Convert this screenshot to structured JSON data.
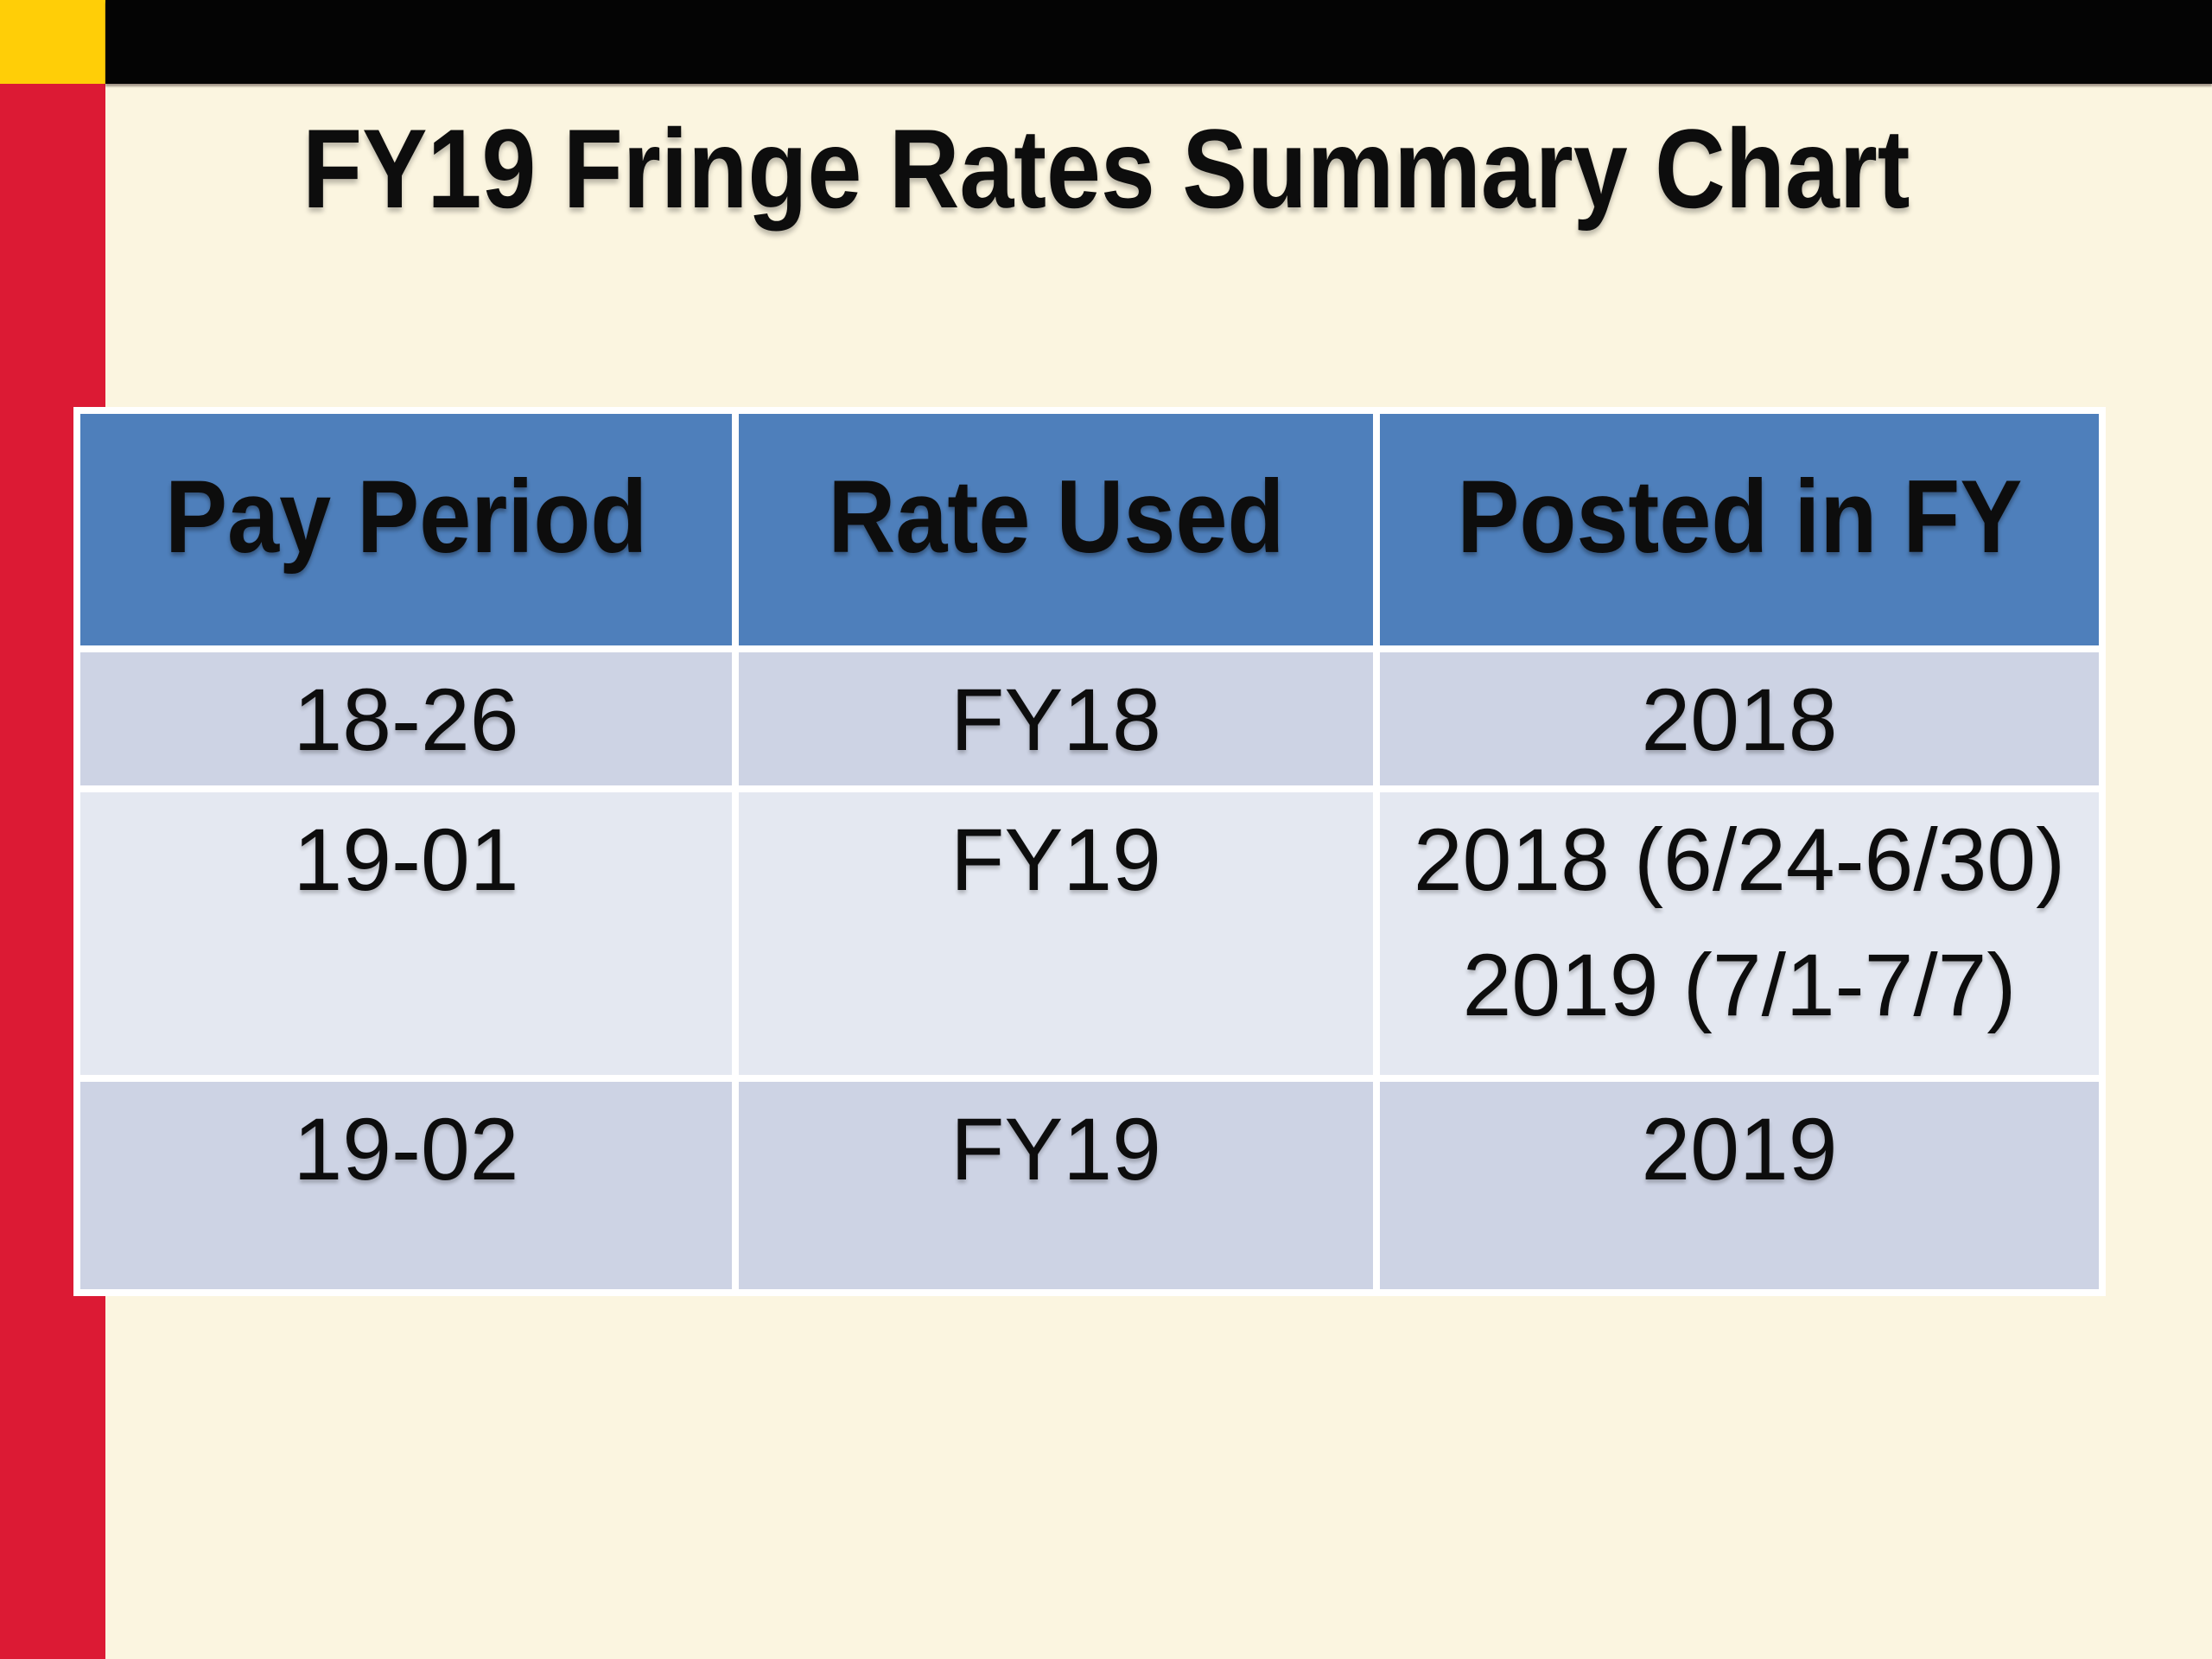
{
  "slide": {
    "title": "FY19 Fringe Rates Summary Chart"
  },
  "table": {
    "headers": [
      "Pay Period",
      "Rate Used",
      "Posted in FY"
    ],
    "rows": [
      {
        "pay_period": "18-26",
        "rate_used": "FY18",
        "posted_lines": [
          "2018"
        ]
      },
      {
        "pay_period": "19-01",
        "rate_used": "FY19",
        "posted_lines": [
          "2018 (6/24-6/30)",
          "2019 (7/1-7/7)"
        ]
      },
      {
        "pay_period": "19-02",
        "rate_used": "FY19",
        "posted_lines": [
          "2019"
        ]
      }
    ]
  },
  "colors": {
    "background_cream": "#FBF5E0",
    "sidebar_red": "#DC1A34",
    "corner_yellow": "#FFCE07",
    "top_bar_black": "#040404",
    "header_blue": "#4E7FBB",
    "row_band_dark": "#CDD3E4",
    "row_band_light": "#E4E8F1",
    "cell_border_white": "#FFFFFF",
    "text_black": "#0D0D0D"
  }
}
